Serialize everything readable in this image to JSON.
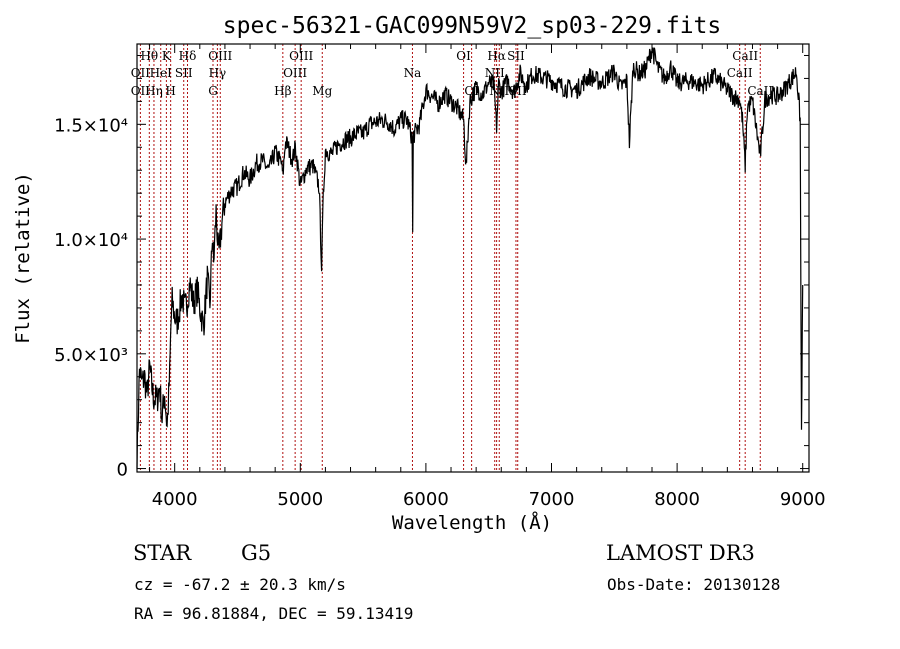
{
  "chart_data": {
    "type": "line",
    "title": "spec-56321-GAC099N59V2_sp03-229.fits",
    "xlabel": "Wavelength (Å)",
    "ylabel": "Flux (relative)",
    "xlim": [
      3700,
      9050
    ],
    "ylim": [
      -150,
      18500
    ],
    "x_ticks": [
      {
        "value": 4000,
        "label": "4000"
      },
      {
        "value": 5000,
        "label": "5000"
      },
      {
        "value": 6000,
        "label": "6000"
      },
      {
        "value": 7000,
        "label": "7000"
      },
      {
        "value": 8000,
        "label": "8000"
      },
      {
        "value": 9000,
        "label": "9000"
      }
    ],
    "y_ticks": [
      {
        "value": 0,
        "label": "0"
      },
      {
        "value": 5000,
        "label": "5.0×10³"
      },
      {
        "value": 10000,
        "label": "1.0×10⁴"
      },
      {
        "value": 15000,
        "label": "1.5×10⁴"
      }
    ],
    "series": [
      {
        "name": "flux",
        "x": [
          3700,
          3720,
          3740,
          3760,
          3780,
          3800,
          3830,
          3860,
          3880,
          3900,
          3920,
          3940,
          3960,
          3970,
          3980,
          4000,
          4020,
          4040,
          4060,
          4080,
          4100,
          4120,
          4150,
          4180,
          4200,
          4230,
          4260,
          4280,
          4300,
          4310,
          4330,
          4350,
          4380,
          4400,
          4450,
          4500,
          4550,
          4600,
          4650,
          4700,
          4750,
          4800,
          4850,
          4861,
          4880,
          4900,
          4920,
          4940,
          4960,
          4980,
          5000,
          5050,
          5100,
          5150,
          5170,
          5183,
          5200,
          5250,
          5300,
          5350,
          5400,
          5450,
          5500,
          5550,
          5600,
          5650,
          5700,
          5750,
          5800,
          5850,
          5890,
          5895,
          5900,
          5950,
          6000,
          6050,
          6100,
          6150,
          6200,
          6250,
          6300,
          6320,
          6350,
          6400,
          6450,
          6500,
          6540,
          6563,
          6580,
          6600,
          6650,
          6700,
          6750,
          6800,
          6850,
          6900,
          6950,
          7000,
          7100,
          7200,
          7300,
          7400,
          7500,
          7550,
          7600,
          7620,
          7650,
          7700,
          7750,
          7800,
          7850,
          7900,
          7950,
          8000,
          8100,
          8200,
          8300,
          8400,
          8450,
          8498,
          8520,
          8542,
          8560,
          8600,
          8662,
          8700,
          8750,
          8800,
          8850,
          8900,
          8950,
          8980,
          8990,
          9000
        ],
        "values": [
          300,
          4300,
          3700,
          4000,
          3200,
          4400,
          3100,
          3000,
          3600,
          2200,
          3300,
          1800,
          4100,
          6200,
          7300,
          6600,
          6400,
          7000,
          7600,
          6900,
          7300,
          8100,
          7200,
          7800,
          7000,
          6200,
          8300,
          7100,
          10200,
          8900,
          11200,
          9200,
          10900,
          11600,
          12100,
          12300,
          12900,
          12600,
          13300,
          13400,
          13000,
          13800,
          13300,
          12700,
          14200,
          14100,
          13700,
          13500,
          14000,
          13200,
          12300,
          13100,
          13200,
          12300,
          8800,
          11800,
          13900,
          13700,
          14100,
          14300,
          14400,
          14600,
          14600,
          15000,
          15100,
          15200,
          15100,
          14800,
          15200,
          15200,
          14400,
          10200,
          14500,
          15000,
          16500,
          16200,
          15900,
          16300,
          16000,
          15700,
          15200,
          13100,
          16000,
          16600,
          16300,
          16800,
          16700,
          14900,
          16800,
          16400,
          16900,
          16400,
          17200,
          16700,
          17200,
          17100,
          17000,
          16900,
          16600,
          16500,
          17100,
          16800,
          17300,
          16600,
          16900,
          14200,
          17500,
          17200,
          17400,
          18300,
          17400,
          17000,
          17500,
          16800,
          16900,
          16700,
          17100,
          16500,
          16200,
          16100,
          15200,
          13200,
          15800,
          16000,
          13600,
          16100,
          16300,
          16200,
          16500,
          16900,
          17300,
          15200,
          1600,
          8000
        ]
      }
    ],
    "spectral_lines": [
      {
        "label": "Hθ",
        "wavelength": 3798,
        "row": 0
      },
      {
        "label": "OII",
        "wavelength": 3727,
        "row": 1
      },
      {
        "label": "OII",
        "wavelength": 3727,
        "row": 2
      },
      {
        "label": "Hη",
        "wavelength": 3835,
        "row": 2
      },
      {
        "label": "HeI",
        "wavelength": 3889,
        "row": 1
      },
      {
        "label": "K",
        "wavelength": 3934,
        "row": 0
      },
      {
        "label": "SII",
        "wavelength": 4072,
        "row": 1
      },
      {
        "label": "H",
        "wavelength": 3968,
        "row": 2
      },
      {
        "label": "Hδ",
        "wavelength": 4102,
        "row": 0
      },
      {
        "label": "OIII",
        "wavelength": 4363,
        "row": 0
      },
      {
        "label": "Hγ",
        "wavelength": 4340,
        "row": 1
      },
      {
        "label": "G",
        "wavelength": 4305,
        "row": 2
      },
      {
        "label": "OIII",
        "wavelength": 5007,
        "row": 0
      },
      {
        "label": "OIII",
        "wavelength": 4959,
        "row": 1
      },
      {
        "label": "Hβ",
        "wavelength": 4861,
        "row": 2
      },
      {
        "label": "Mg",
        "wavelength": 5175,
        "row": 2
      },
      {
        "label": "Na",
        "wavelength": 5893,
        "row": 1
      },
      {
        "label": "OI",
        "wavelength": 6300,
        "row": 0
      },
      {
        "label": "OI",
        "wavelength": 6364,
        "row": 2
      },
      {
        "label": "Hα",
        "wavelength": 6563,
        "row": 0
      },
      {
        "label": "SII",
        "wavelength": 6717,
        "row": 0
      },
      {
        "label": "NII",
        "wavelength": 6548,
        "row": 1
      },
      {
        "label": "NII",
        "wavelength": 6584,
        "row": 2
      },
      {
        "label": "SII",
        "wavelength": 6731,
        "row": 2
      },
      {
        "label": "CaII",
        "wavelength": 8542,
        "row": 0
      },
      {
        "label": "CaII",
        "wavelength": 8498,
        "row": 1
      },
      {
        "label": "CaII",
        "wavelength": 8662,
        "row": 2
      }
    ],
    "line_color": "#000000",
    "marker_color": "#b01010"
  },
  "info": {
    "object_class": "STAR",
    "subclass": "G5",
    "survey": "LAMOST DR3",
    "redshift": "cz = -67.2 ± 20.3 km/s",
    "obs_date": "Obs-Date: 20130128",
    "coords": "RA =  96.81884, DEC =  59.13419"
  }
}
